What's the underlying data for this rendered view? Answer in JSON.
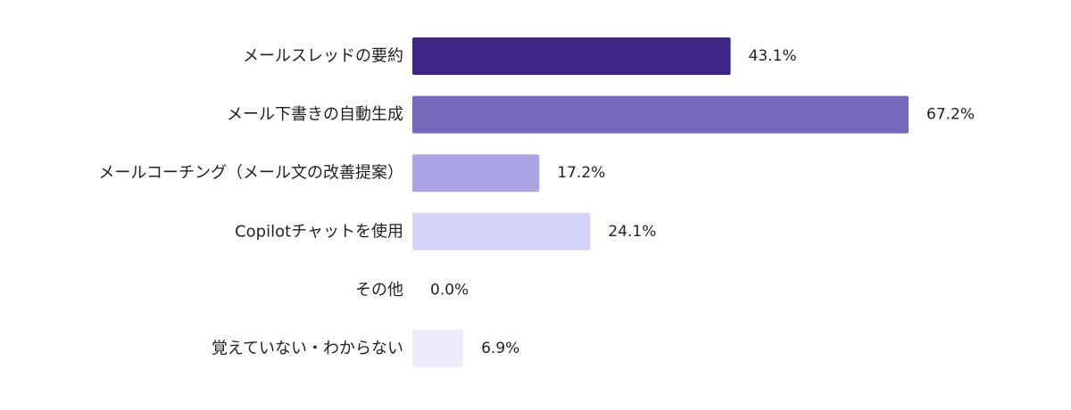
{
  "chart_data": {
    "type": "bar",
    "orientation": "horizontal",
    "categories": [
      "メールスレッドの要約",
      "メール下書きの自動生成",
      "メールコーチング（メール文の改善提案）",
      "Copilotチャットを使用",
      "その他",
      "覚えていない・わからない"
    ],
    "values": [
      43.1,
      67.2,
      17.2,
      24.1,
      0.0,
      6.9
    ],
    "value_labels": [
      "43.1%",
      "67.2%",
      "17.2%",
      "24.1%",
      "0.0%",
      "6.9%"
    ],
    "unit": "%",
    "colors": [
      "#3f2585",
      "#7569be",
      "#aba5e6",
      "#d6d3fb",
      "#e4e2fc",
      "#eeecfd"
    ],
    "title": "",
    "xlabel": "",
    "ylabel": "",
    "xlim": [
      0,
      67.2
    ],
    "grid": false,
    "legend": "none"
  }
}
